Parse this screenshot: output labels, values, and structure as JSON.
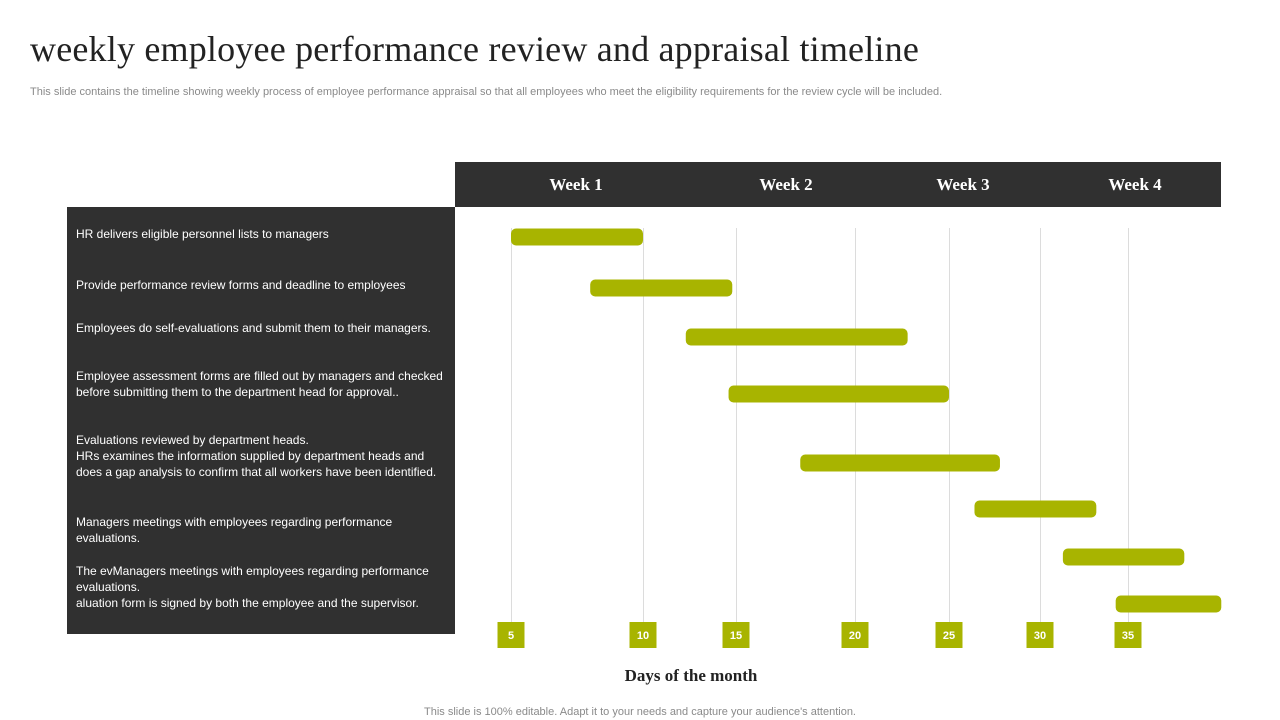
{
  "title": "weekly employee performance review and appraisal timeline",
  "subtitle": "This slide contains the timeline showing weekly process of employee performance appraisal  so that all employees who meet the eligibility requirements for the review cycle will be included.",
  "weeks": [
    "Week 1",
    "Week 2",
    "Week 3",
    "Week 4"
  ],
  "tasks": [
    "HR delivers eligible personnel lists to managers",
    "Provide performance review forms and deadline to employees",
    "Employees do self-evaluations  and submit them to their managers.",
    "Employee assessment forms are filled out by managers and checked before  submitting them to the department head for approval..",
    "Evaluations reviewed  by department heads.\nHRs examines the information  supplied by department heads and does a gap analysis to confirm that all workers have  been identified.",
    "Managers meetings with employees regarding  performance evaluations.",
    "The evManagers  meetings with employees regarding performance  evaluations.\naluation form is signed by both the employee and the supervisor."
  ],
  "chart_data": {
    "type": "gantt",
    "xlabel": "Days of the month",
    "x_ticks": [
      5,
      10,
      15,
      20,
      25,
      30,
      35
    ],
    "x_tick_labels": [
      "5",
      "10",
      "15",
      "20",
      "25",
      "30",
      "35"
    ],
    "bars": [
      {
        "start": 5,
        "end": 10
      },
      {
        "start": 8,
        "end": 14.8
      },
      {
        "start": 12.3,
        "end": 22.8
      },
      {
        "start": 14.6,
        "end": 25
      },
      {
        "start": 17.7,
        "end": 27.8
      },
      {
        "start": 26.4,
        "end": 33.2
      },
      {
        "start": 31.3,
        "end": 38.2
      },
      {
        "start": 34.3,
        "end": 40.3
      }
    ],
    "grid": true,
    "color": "#a8b400"
  },
  "footer": "This slide is 100% editable. Adapt it to your needs and capture your audience's attention."
}
